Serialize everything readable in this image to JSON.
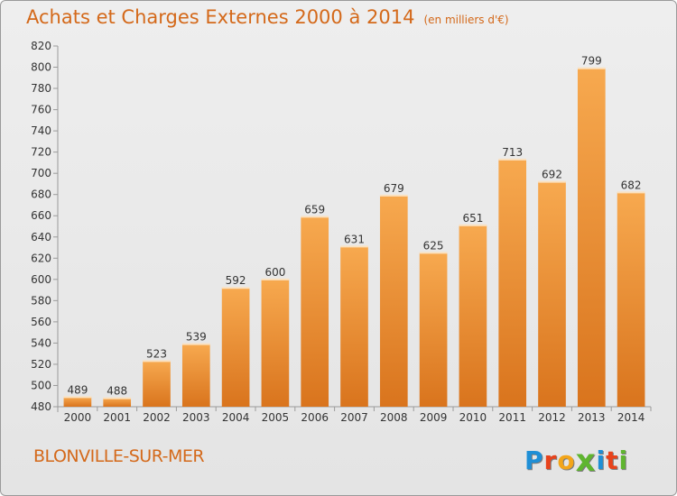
{
  "header": {
    "title": "Achats et Charges Externes 2000 à 2014",
    "unit": "(en milliers d'€)"
  },
  "footer": {
    "commune": "BLONVILLE-SUR-MER",
    "logo_letters": [
      "P",
      "r",
      "o",
      "x",
      "i",
      "t",
      "i"
    ],
    "logo_colors": [
      "#1f8fd6",
      "#e8431c",
      "#f3a519",
      "#5fb52f",
      "#1f8fd6",
      "#e8431c",
      "#5fb52f"
    ]
  },
  "colors": {
    "bar_top": "#f7a94f",
    "bar_bottom": "#d9741d",
    "title": "#d4691a",
    "grid": "#bdbdbd"
  },
  "chart_data": {
    "type": "bar",
    "title": "Achats et Charges Externes 2000 à 2014",
    "subtitle": "(en milliers d'€)",
    "xlabel": "",
    "ylabel": "",
    "categories": [
      "2000",
      "2001",
      "2002",
      "2003",
      "2004",
      "2005",
      "2006",
      "2007",
      "2008",
      "2009",
      "2010",
      "2011",
      "2012",
      "2013",
      "2014"
    ],
    "values": [
      489,
      488,
      523,
      539,
      592,
      600,
      659,
      631,
      679,
      625,
      651,
      713,
      692,
      799,
      682
    ],
    "ylim": [
      480,
      820
    ],
    "yticks": [
      480,
      500,
      520,
      540,
      560,
      580,
      600,
      620,
      640,
      660,
      680,
      700,
      720,
      740,
      760,
      780,
      800,
      820
    ],
    "grid": false,
    "legend": "none"
  }
}
